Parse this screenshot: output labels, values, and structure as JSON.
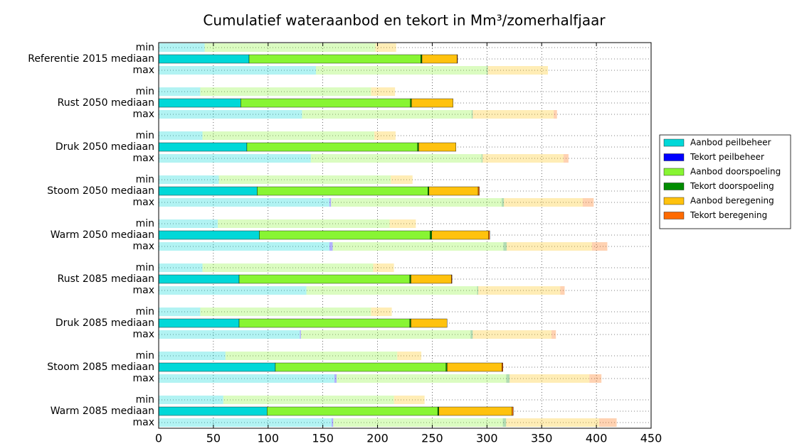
{
  "chart_data": {
    "type": "stacked-barh",
    "title": "Cumulatief wateraanbod en tekort in Mm³/zomerhalfjaar",
    "categories": [
      "min",
      "Referentie 2015 mediaan",
      "max",
      "min",
      "Rust 2050 mediaan",
      "max",
      "min",
      "Druk 2050 mediaan",
      "max",
      "min",
      "Stoom 2050 mediaan",
      "max",
      "min",
      "Warm 2050 mediaan",
      "max",
      "min",
      "Rust 2085 mediaan",
      "max",
      "min",
      "Druk 2085 mediaan",
      "max",
      "min",
      "Stoom 2085 mediaan",
      "max",
      "min",
      "Warm 2085 mediaan",
      "max"
    ],
    "series": [
      {
        "name": "Aanbod peilbeheer",
        "color": "#00d8d8",
        "values": [
          42,
          82.6,
          143.7,
          38,
          75,
          131,
          40,
          80.6,
          139,
          55,
          90,
          156,
          54,
          92,
          156,
          40,
          73.5,
          135,
          38,
          73.5,
          129,
          61,
          106.6,
          160.6,
          59,
          99,
          158
        ]
      },
      {
        "name": "Tekort peilbeheer",
        "color": "#0000ff",
        "values": [
          0,
          0,
          0,
          0,
          0,
          0,
          0,
          0,
          0,
          0,
          0,
          1.5,
          0,
          0,
          3,
          0,
          0,
          0,
          0,
          0,
          1,
          0,
          0,
          2,
          0,
          0,
          1.5
        ]
      },
      {
        "name": "Aanbod doorspoeling",
        "color": "#88f533",
        "values": [
          156,
          157,
          156,
          156,
          155,
          155,
          157,
          156,
          156,
          157,
          156,
          156,
          157,
          156,
          156,
          156,
          156,
          156,
          156,
          156,
          155,
          157,
          156,
          155,
          156,
          156,
          155
        ]
      },
      {
        "name": "Tekort doorspoeling",
        "color": "#008c00",
        "values": [
          0,
          1,
          1,
          0,
          1,
          1,
          0,
          1,
          1,
          0,
          1,
          2,
          0,
          1.5,
          3,
          0,
          1,
          1,
          0,
          1,
          2,
          0,
          1,
          3,
          0,
          1,
          3
        ]
      },
      {
        "name": "Aanbod beregening",
        "color": "#ffc20e",
        "values": [
          19,
          32,
          55,
          22,
          38,
          74,
          19.5,
          34,
          74,
          20,
          45,
          72,
          24,
          52,
          78,
          19,
          37,
          75,
          19,
          33,
          72,
          22,
          50,
          73,
          28,
          67,
          85
        ]
      },
      {
        "name": "Tekort beregening",
        "color": "#ff6a00",
        "values": [
          0,
          0.5,
          0,
          0,
          0,
          3,
          0,
          0,
          4.5,
          0,
          1,
          10,
          0,
          1,
          14,
          0,
          0.5,
          4,
          0,
          0,
          4,
          0,
          1,
          11,
          0,
          1,
          16
        ]
      }
    ],
    "xlim": [
      0,
      450
    ],
    "xticks": [
      0,
      50,
      100,
      150,
      200,
      250,
      300,
      350,
      400,
      450
    ],
    "grid": true
  }
}
